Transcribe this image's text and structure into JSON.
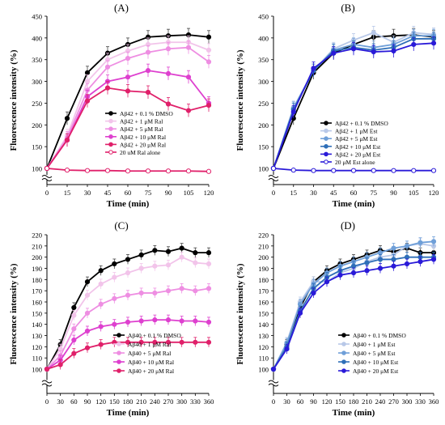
{
  "chart_data": [
    {
      "type": "line",
      "panel_label": "(A)",
      "xlabel": "Time (min)",
      "ylabel": "Fluorescence intensity (%)",
      "xlim": [
        0,
        120
      ],
      "ylim": [
        100,
        450
      ],
      "ybreak": true,
      "x_ticks": [
        0,
        15,
        30,
        45,
        60,
        75,
        90,
        105,
        120
      ],
      "y_ticks": [
        100,
        150,
        200,
        250,
        300,
        350,
        400,
        450
      ],
      "legend_position": "center-right",
      "series": [
        {
          "name": "Aβ42 + 0.1 % DMSO",
          "color": "#000000",
          "marker": "filled",
          "x": [
            0,
            15,
            30,
            45,
            60,
            75,
            90,
            105,
            120
          ],
          "y": [
            100,
            215,
            320,
            365,
            385,
            402,
            405,
            407,
            402
          ]
        },
        {
          "name": "Aβ42 + 1 μM Ral",
          "color": "#f2c4ea",
          "marker": "filled",
          "x": [
            0,
            15,
            30,
            45,
            60,
            75,
            90,
            105,
            120
          ],
          "y": [
            100,
            175,
            300,
            350,
            370,
            385,
            390,
            390,
            372
          ]
        },
        {
          "name": "Aβ42 + 5 μM Ral",
          "color": "#ee8ee2",
          "marker": "filled",
          "x": [
            0,
            15,
            30,
            45,
            60,
            75,
            90,
            105,
            120
          ],
          "y": [
            100,
            170,
            280,
            333,
            353,
            367,
            375,
            378,
            345
          ]
        },
        {
          "name": "Aβ42 + 10 μM Ral",
          "color": "#de40cf",
          "marker": "filled",
          "x": [
            0,
            15,
            30,
            45,
            60,
            75,
            90,
            105,
            120
          ],
          "y": [
            100,
            165,
            265,
            300,
            310,
            325,
            318,
            310,
            250
          ]
        },
        {
          "name": "Aβ42 + 20 μM Ral",
          "color": "#e0206a",
          "marker": "filled",
          "x": [
            0,
            15,
            30,
            45,
            60,
            75,
            90,
            105,
            120
          ],
          "y": [
            100,
            165,
            255,
            285,
            278,
            275,
            248,
            233,
            245
          ]
        },
        {
          "name": "20 uM Ral alone",
          "color": "#e0206a",
          "marker": "open",
          "x": [
            0,
            15,
            30,
            45,
            60,
            75,
            90,
            105,
            120
          ],
          "y": [
            100,
            96,
            95,
            95,
            94,
            94,
            94,
            94,
            93
          ]
        }
      ]
    },
    {
      "type": "line",
      "panel_label": "(B)",
      "xlabel": "Time (min)",
      "ylabel": "Fluorescence intensity (%)",
      "xlim": [
        0,
        120
      ],
      "ylim": [
        100,
        450
      ],
      "ybreak": true,
      "x_ticks": [
        0,
        15,
        30,
        45,
        60,
        75,
        90,
        105,
        120
      ],
      "y_ticks": [
        100,
        150,
        200,
        250,
        300,
        350,
        400,
        450
      ],
      "legend_position": "center-right",
      "series": [
        {
          "name": "Aβ42 + 0.1 % DMSO",
          "color": "#000000",
          "marker": "filled",
          "x": [
            0,
            15,
            30,
            45,
            60,
            75,
            90,
            105,
            120
          ],
          "y": [
            100,
            215,
            320,
            365,
            385,
            402,
            405,
            407,
            402
          ]
        },
        {
          "name": "Aβ42 + 1 μM Est",
          "color": "#b8c8e8",
          "marker": "filled",
          "x": [
            0,
            15,
            30,
            45,
            60,
            75,
            90,
            105,
            120
          ],
          "y": [
            100,
            240,
            325,
            375,
            395,
            412,
            390,
            412,
            408
          ]
        },
        {
          "name": "Aβ42 + 5 μM Est",
          "color": "#6f9fd8",
          "marker": "filled",
          "x": [
            0,
            15,
            30,
            45,
            60,
            75,
            90,
            105,
            120
          ],
          "y": [
            100,
            238,
            325,
            372,
            385,
            378,
            385,
            405,
            405
          ]
        },
        {
          "name": "Aβ42 + 10 μM Est",
          "color": "#2f6fb8",
          "marker": "filled",
          "x": [
            0,
            15,
            30,
            45,
            60,
            75,
            90,
            105,
            120
          ],
          "y": [
            100,
            235,
            325,
            370,
            378,
            372,
            378,
            398,
            398
          ]
        },
        {
          "name": "Aβ42 + 20 μM Est",
          "color": "#2a1ad8",
          "marker": "filled",
          "x": [
            0,
            15,
            30,
            45,
            60,
            75,
            90,
            105,
            120
          ],
          "y": [
            100,
            230,
            330,
            365,
            375,
            368,
            370,
            385,
            388
          ]
        },
        {
          "name": "20 μM Est alone",
          "color": "#2a1ad8",
          "marker": "open",
          "x": [
            0,
            15,
            30,
            45,
            60,
            75,
            90,
            105,
            120
          ],
          "y": [
            100,
            96,
            95,
            95,
            95,
            95,
            95,
            95,
            95
          ]
        }
      ]
    },
    {
      "type": "line",
      "panel_label": "(C)",
      "xlabel": "Time (min)",
      "ylabel": "Fluorescence intensity (%)",
      "xlim": [
        0,
        360
      ],
      "ylim": [
        100,
        220
      ],
      "ybreak": true,
      "x_ticks": [
        0,
        30,
        60,
        90,
        120,
        150,
        180,
        210,
        240,
        270,
        300,
        330,
        360
      ],
      "y_ticks": [
        100,
        110,
        120,
        130,
        140,
        150,
        160,
        170,
        180,
        190,
        200,
        210,
        220
      ],
      "legend_position": "bottom-right",
      "series": [
        {
          "name": "Aβ40 + 0.1 % DMSO",
          "color": "#000000",
          "marker": "filled",
          "x": [
            0,
            30,
            60,
            90,
            120,
            150,
            180,
            210,
            240,
            270,
            300,
            330,
            360
          ],
          "y": [
            100,
            122,
            155,
            178,
            188,
            194,
            198,
            202,
            206,
            205,
            208,
            204,
            204
          ]
        },
        {
          "name": "Aβ40 + 1 μM Ral",
          "color": "#f2c4ea",
          "marker": "filled",
          "x": [
            0,
            30,
            60,
            90,
            120,
            150,
            180,
            210,
            240,
            270,
            300,
            330,
            360
          ],
          "y": [
            100,
            118,
            148,
            166,
            176,
            182,
            186,
            190,
            192,
            193,
            200,
            195,
            194
          ]
        },
        {
          "name": "Aβ40 + 5 μM Ral",
          "color": "#ee8ee2",
          "marker": "filled",
          "x": [
            0,
            30,
            60,
            90,
            120,
            150,
            180,
            210,
            240,
            270,
            300,
            330,
            360
          ],
          "y": [
            100,
            112,
            136,
            150,
            158,
            163,
            166,
            168,
            168,
            170,
            172,
            170,
            172
          ]
        },
        {
          "name": "Aβ40 + 10 μM Ral",
          "color": "#de40cf",
          "marker": "filled",
          "x": [
            0,
            30,
            60,
            90,
            120,
            150,
            180,
            210,
            240,
            270,
            300,
            330,
            360
          ],
          "y": [
            100,
            108,
            126,
            134,
            138,
            140,
            142,
            143,
            144,
            144,
            143,
            143,
            142
          ]
        },
        {
          "name": "Aβ40 + 20 μM Ral",
          "color": "#e0206a",
          "marker": "filled",
          "x": [
            0,
            30,
            60,
            90,
            120,
            150,
            180,
            210,
            240,
            270,
            300,
            330,
            360
          ],
          "y": [
            100,
            104,
            114,
            119,
            122,
            124,
            124,
            124,
            124,
            124,
            124,
            124,
            124
          ]
        }
      ]
    },
    {
      "type": "line",
      "panel_label": "(D)",
      "xlabel": "Time (min)",
      "ylabel": "Fluorescence intensity (%)",
      "xlim": [
        0,
        360
      ],
      "ylim": [
        100,
        220
      ],
      "ybreak": true,
      "x_ticks": [
        0,
        30,
        60,
        90,
        120,
        150,
        180,
        210,
        240,
        270,
        300,
        330,
        360
      ],
      "y_ticks": [
        100,
        110,
        120,
        130,
        140,
        150,
        160,
        170,
        180,
        190,
        200,
        210,
        220
      ],
      "legend_position": "bottom-right",
      "series": [
        {
          "name": "Aβ40 + 0.1 % DMSO",
          "color": "#000000",
          "marker": "filled",
          "x": [
            0,
            30,
            60,
            90,
            120,
            150,
            180,
            210,
            240,
            270,
            300,
            330,
            360
          ],
          "y": [
            100,
            122,
            155,
            178,
            188,
            194,
            198,
            202,
            206,
            205,
            208,
            204,
            204
          ]
        },
        {
          "name": "Aβ40 + 1 μM Est",
          "color": "#b8c8e8",
          "marker": "filled",
          "x": [
            0,
            30,
            60,
            90,
            120,
            150,
            180,
            210,
            240,
            270,
            300,
            330,
            360
          ],
          "y": [
            100,
            124,
            160,
            178,
            178,
            186,
            190,
            196,
            200,
            202,
            210,
            212,
            210
          ]
        },
        {
          "name": "Aβ40 + 5 μM Est",
          "color": "#6f9fd8",
          "marker": "filled",
          "x": [
            0,
            30,
            60,
            90,
            120,
            150,
            180,
            210,
            240,
            270,
            300,
            330,
            360
          ],
          "y": [
            100,
            123,
            158,
            176,
            186,
            192,
            196,
            200,
            204,
            208,
            210,
            213,
            214
          ]
        },
        {
          "name": "Aβ40 + 10 μM Est",
          "color": "#2f6fb8",
          "marker": "filled",
          "x": [
            0,
            30,
            60,
            90,
            120,
            150,
            180,
            210,
            240,
            270,
            300,
            330,
            360
          ],
          "y": [
            100,
            120,
            152,
            172,
            182,
            188,
            192,
            195,
            198,
            198,
            200,
            200,
            200
          ]
        },
        {
          "name": "Aβ40 + 20 μM Est",
          "color": "#2a1ad8",
          "marker": "filled",
          "x": [
            0,
            30,
            60,
            90,
            120,
            150,
            180,
            210,
            240,
            270,
            300,
            330,
            360
          ],
          "y": [
            100,
            118,
            150,
            168,
            178,
            184,
            186,
            188,
            190,
            192,
            194,
            196,
            198
          ]
        }
      ]
    }
  ]
}
